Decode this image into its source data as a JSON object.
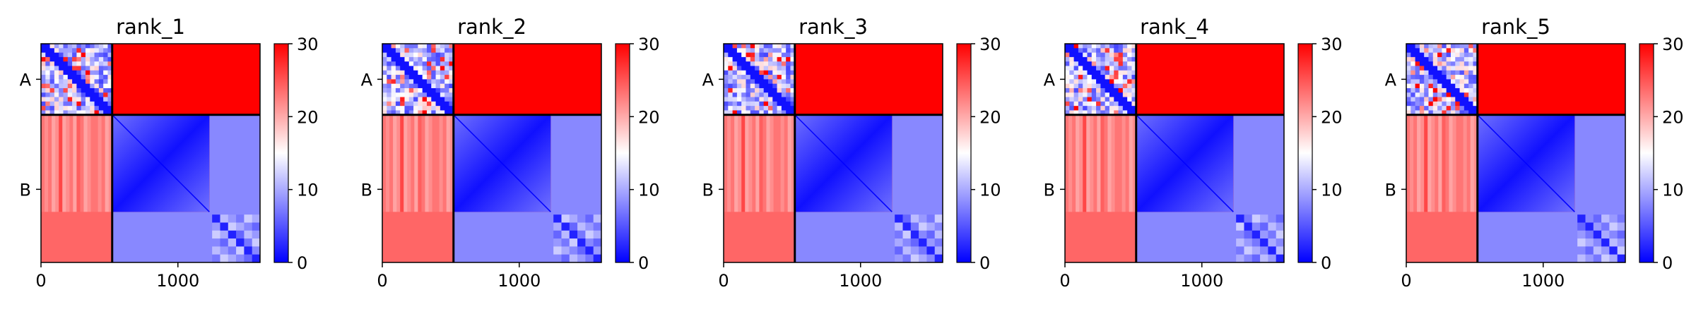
{
  "chart_data": [
    {
      "type": "heatmap",
      "title": "rank_1",
      "xlabel": "",
      "ylabel": "",
      "x_ticks": [
        0,
        1000
      ],
      "xlim": [
        0,
        1600
      ],
      "y_ticks": [
        {
          "label": "A",
          "center": 260
        },
        {
          "label": "B",
          "center": 1065
        }
      ],
      "chain_boundaries": [
        520
      ],
      "blocks": [
        {
          "name": "A-A",
          "mean": 12
        },
        {
          "name": "A-B",
          "mean": 30
        },
        {
          "name": "B-B",
          "mean": 8
        },
        {
          "name": "B-A",
          "mean": 24
        }
      ],
      "colorbar": {
        "min": 0,
        "max": 30,
        "ticks": [
          0,
          10,
          20,
          30
        ],
        "colors": [
          "#0000ff",
          "#ffffff",
          "#ff0000"
        ]
      }
    },
    {
      "type": "heatmap",
      "title": "rank_2",
      "xlabel": "",
      "ylabel": "",
      "x_ticks": [
        0,
        1000
      ],
      "xlim": [
        0,
        1600
      ],
      "y_ticks": [
        {
          "label": "A",
          "center": 260
        },
        {
          "label": "B",
          "center": 1065
        }
      ],
      "chain_boundaries": [
        520
      ],
      "blocks": [
        {
          "name": "A-A",
          "mean": 12
        },
        {
          "name": "A-B",
          "mean": 30
        },
        {
          "name": "B-B",
          "mean": 8
        },
        {
          "name": "B-A",
          "mean": 24
        }
      ],
      "colorbar": {
        "min": 0,
        "max": 30,
        "ticks": [
          0,
          10,
          20,
          30
        ],
        "colors": [
          "#0000ff",
          "#ffffff",
          "#ff0000"
        ]
      }
    },
    {
      "type": "heatmap",
      "title": "rank_3",
      "xlabel": "",
      "ylabel": "",
      "x_ticks": [
        0,
        1000
      ],
      "xlim": [
        0,
        1600
      ],
      "y_ticks": [
        {
          "label": "A",
          "center": 260
        },
        {
          "label": "B",
          "center": 1065
        }
      ],
      "chain_boundaries": [
        520
      ],
      "blocks": [
        {
          "name": "A-A",
          "mean": 12
        },
        {
          "name": "A-B",
          "mean": 30
        },
        {
          "name": "B-B",
          "mean": 8
        },
        {
          "name": "B-A",
          "mean": 24
        }
      ],
      "colorbar": {
        "min": 0,
        "max": 30,
        "ticks": [
          0,
          10,
          20,
          30
        ],
        "colors": [
          "#0000ff",
          "#ffffff",
          "#ff0000"
        ]
      }
    },
    {
      "type": "heatmap",
      "title": "rank_4",
      "xlabel": "",
      "ylabel": "",
      "x_ticks": [
        0,
        1000
      ],
      "xlim": [
        0,
        1600
      ],
      "y_ticks": [
        {
          "label": "A",
          "center": 260
        },
        {
          "label": "B",
          "center": 1065
        }
      ],
      "chain_boundaries": [
        520
      ],
      "blocks": [
        {
          "name": "A-A",
          "mean": 12
        },
        {
          "name": "A-B",
          "mean": 30
        },
        {
          "name": "B-B",
          "mean": 8
        },
        {
          "name": "B-A",
          "mean": 24
        }
      ],
      "colorbar": {
        "min": 0,
        "max": 30,
        "ticks": [
          0,
          10,
          20,
          30
        ],
        "colors": [
          "#0000ff",
          "#ffffff",
          "#ff0000"
        ]
      }
    },
    {
      "type": "heatmap",
      "title": "rank_5",
      "xlabel": "",
      "ylabel": "",
      "x_ticks": [
        0,
        1000
      ],
      "xlim": [
        0,
        1600
      ],
      "y_ticks": [
        {
          "label": "A",
          "center": 260
        },
        {
          "label": "B",
          "center": 1065
        }
      ],
      "chain_boundaries": [
        520
      ],
      "blocks": [
        {
          "name": "A-A",
          "mean": 12
        },
        {
          "name": "A-B",
          "mean": 30
        },
        {
          "name": "B-B",
          "mean": 8
        },
        {
          "name": "B-A",
          "mean": 24
        }
      ],
      "colorbar": {
        "min": 0,
        "max": 30,
        "ticks": [
          0,
          10,
          20,
          30
        ],
        "colors": [
          "#0000ff",
          "#ffffff",
          "#ff0000"
        ]
      }
    }
  ]
}
